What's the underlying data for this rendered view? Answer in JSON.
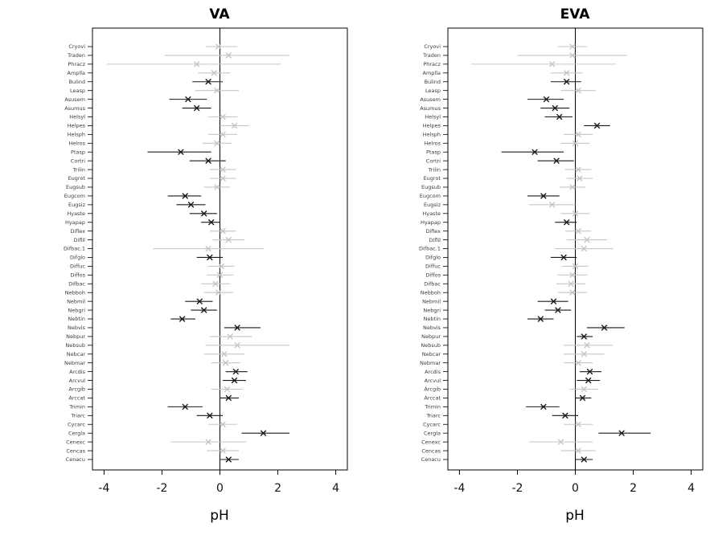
{
  "colors": {
    "significant": "#1a1a1a",
    "nonsignificant": "#c6c6c6",
    "axis": "#000000",
    "label_text": "#3c3c3c"
  },
  "chart_data": [
    {
      "type": "scatter",
      "title": "VA",
      "xlabel": "pH",
      "ylabel": "",
      "xlim": [
        -4.4,
        4.4
      ],
      "x_ticks": [
        -4,
        -2,
        0,
        2,
        4
      ],
      "reference_x": 0,
      "grid": false,
      "legend": "none",
      "categories": [
        "Cryovi",
        "Traden",
        "Phracz",
        "Amplla",
        "Bulind",
        "Leasp",
        "Asusem",
        "Asumus",
        "Helsyl",
        "Helpes",
        "Helsph",
        "Helros",
        "Ptasp",
        "Cortri",
        "Trilin",
        "Eugrot",
        "Eugsub",
        "Eugcom",
        "Eugsiz",
        "Hyaste",
        "Hyapap",
        "Diflex",
        "Diflil",
        "Difbac.1",
        "Difglo",
        "Diffuc",
        "Diffos",
        "Difbac",
        "Nebboh",
        "Nebmil",
        "Nebgri",
        "Nebtin",
        "Nebvis",
        "Nebpur",
        "Nebsub",
        "Nebcar",
        "Nebmar",
        "Arcdis",
        "Arcvul",
        "Arcgib",
        "Arccat",
        "Trimin",
        "Triarc",
        "Cycarc",
        "Cergla",
        "Cenexc",
        "Cencas",
        "Cenacu"
      ],
      "series": [
        {
          "name": "estimate",
          "values": [
            -0.05,
            0.3,
            -0.8,
            -0.2,
            -0.4,
            -0.1,
            -1.1,
            -0.8,
            0.1,
            0.5,
            0.1,
            -0.1,
            -1.35,
            -0.4,
            0.1,
            0.1,
            -0.1,
            -1.2,
            -1.0,
            -0.55,
            -0.3,
            0.1,
            0.3,
            -0.4,
            -0.35,
            0.05,
            0.0,
            -0.15,
            -0.05,
            -0.7,
            -0.55,
            -1.3,
            0.6,
            0.35,
            0.6,
            0.15,
            0.2,
            0.55,
            0.5,
            0.25,
            0.3,
            -1.2,
            -0.35,
            0.1,
            1.5,
            -0.4,
            0.1,
            0.3
          ]
        },
        {
          "name": "ci_lower",
          "values": [
            -0.5,
            -1.9,
            -3.9,
            -0.75,
            -0.95,
            -0.85,
            -1.75,
            -1.3,
            -0.4,
            0.0,
            -0.4,
            -0.6,
            -2.5,
            -1.05,
            -0.35,
            -0.35,
            -0.55,
            -1.8,
            -1.5,
            -1.05,
            -0.65,
            -0.35,
            -0.25,
            -2.3,
            -0.8,
            -0.4,
            -0.45,
            -0.65,
            -0.55,
            -1.2,
            -1.0,
            -1.7,
            0.15,
            -0.35,
            -0.5,
            -0.55,
            -0.3,
            0.2,
            0.1,
            -0.3,
            0.0,
            -1.8,
            -0.8,
            -0.4,
            0.75,
            -1.7,
            -0.45,
            0.0
          ]
        },
        {
          "name": "ci_upper",
          "values": [
            0.6,
            2.4,
            2.1,
            0.35,
            0.1,
            0.65,
            -0.45,
            -0.3,
            0.6,
            1.0,
            0.6,
            0.4,
            -0.3,
            0.2,
            0.55,
            0.55,
            0.35,
            -0.65,
            -0.5,
            -0.1,
            0.0,
            0.55,
            0.85,
            1.5,
            0.1,
            0.5,
            0.45,
            0.35,
            0.45,
            -0.25,
            -0.1,
            -0.85,
            1.4,
            1.1,
            2.4,
            0.85,
            0.7,
            0.95,
            0.9,
            0.8,
            0.65,
            -0.6,
            0.1,
            0.6,
            2.4,
            0.9,
            0.65,
            0.65
          ]
        },
        {
          "name": "significant",
          "values": [
            0,
            0,
            0,
            0,
            1,
            0,
            1,
            1,
            0,
            0,
            0,
            0,
            1,
            1,
            0,
            0,
            0,
            1,
            1,
            1,
            1,
            0,
            0,
            0,
            1,
            0,
            0,
            0,
            0,
            1,
            1,
            1,
            1,
            0,
            0,
            0,
            0,
            1,
            1,
            0,
            1,
            1,
            1,
            0,
            1,
            0,
            0,
            1
          ]
        }
      ]
    },
    {
      "type": "scatter",
      "title": "EVA",
      "xlabel": "pH",
      "ylabel": "",
      "xlim": [
        -4.4,
        4.4
      ],
      "x_ticks": [
        -4,
        -2,
        0,
        2,
        4
      ],
      "reference_x": 0,
      "grid": false,
      "legend": "none",
      "categories": [
        "Cryovi",
        "Traden",
        "Phracz",
        "Amplla",
        "Bulind",
        "Leasp",
        "Asusem",
        "Asumus",
        "Helsyl",
        "Helpes",
        "Helsph",
        "Helros",
        "Ptasp",
        "Cortri",
        "Trilin",
        "Eugrot",
        "Eugsub",
        "Eugcom",
        "Eugsiz",
        "Hyaste",
        "Hyapap",
        "Diflex",
        "Diflil",
        "Difbac.1",
        "Difglo",
        "Diffuc",
        "Diffos",
        "Difbac",
        "Nebboh",
        "Nebmil",
        "Nebgri",
        "Nebtin",
        "Nebvis",
        "Nebpur",
        "Nebsub",
        "Nebcar",
        "Nebmar",
        "Arcdis",
        "Arcvul",
        "Arcgib",
        "Arccat",
        "Trimin",
        "Triarc",
        "Cycarc",
        "Cergla",
        "Cenexc",
        "Cencas",
        "Cenacu"
      ],
      "series": [
        {
          "name": "estimate",
          "values": [
            -0.1,
            -0.1,
            -0.8,
            -0.3,
            -0.3,
            0.1,
            -1.0,
            -0.7,
            -0.55,
            0.75,
            0.1,
            0.0,
            -1.4,
            -0.65,
            0.1,
            0.15,
            -0.1,
            -1.1,
            -0.8,
            0.0,
            -0.3,
            0.1,
            0.4,
            0.3,
            -0.4,
            0.0,
            -0.1,
            -0.15,
            -0.1,
            -0.75,
            -0.6,
            -1.2,
            1.0,
            0.3,
            0.4,
            0.3,
            0.1,
            0.5,
            0.45,
            0.3,
            0.25,
            -1.1,
            -0.35,
            0.1,
            1.6,
            -0.5,
            0.1,
            0.3
          ]
        },
        {
          "name": "ci_lower",
          "values": [
            -0.6,
            -2.0,
            -3.6,
            -0.85,
            -0.85,
            -0.5,
            -1.65,
            -1.2,
            -1.05,
            0.3,
            -0.4,
            -0.5,
            -2.55,
            -1.3,
            -0.35,
            -0.3,
            -0.55,
            -1.65,
            -1.6,
            -0.5,
            -0.7,
            -0.35,
            -0.3,
            -0.7,
            -0.85,
            -0.45,
            -0.6,
            -0.65,
            -0.6,
            -1.3,
            -1.05,
            -1.65,
            0.4,
            0.05,
            -0.4,
            -0.4,
            -0.4,
            0.15,
            0.05,
            -0.2,
            0.0,
            -1.7,
            -0.8,
            -0.4,
            0.8,
            -1.6,
            -0.5,
            0.0
          ]
        },
        {
          "name": "ci_upper",
          "values": [
            0.4,
            1.8,
            1.4,
            0.25,
            0.2,
            0.7,
            -0.4,
            -0.2,
            -0.1,
            1.2,
            0.6,
            0.5,
            -0.4,
            -0.05,
            0.55,
            0.6,
            0.35,
            -0.55,
            0.0,
            0.5,
            0.05,
            0.55,
            1.1,
            1.3,
            0.05,
            0.45,
            0.4,
            0.35,
            0.4,
            -0.25,
            -0.15,
            -0.75,
            1.7,
            0.6,
            1.3,
            1.0,
            0.6,
            0.9,
            0.85,
            0.8,
            0.55,
            -0.55,
            0.1,
            0.6,
            2.6,
            0.6,
            0.7,
            0.6
          ]
        },
        {
          "name": "significant",
          "values": [
            0,
            0,
            0,
            0,
            1,
            0,
            1,
            1,
            1,
            1,
            0,
            0,
            1,
            1,
            0,
            0,
            0,
            1,
            0,
            0,
            1,
            0,
            0,
            0,
            1,
            0,
            0,
            0,
            0,
            1,
            1,
            1,
            1,
            1,
            0,
            0,
            0,
            1,
            1,
            0,
            1,
            1,
            1,
            0,
            1,
            0,
            0,
            1
          ]
        }
      ]
    }
  ]
}
